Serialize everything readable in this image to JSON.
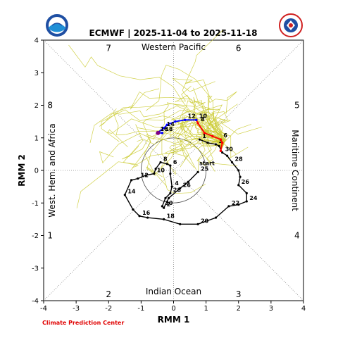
{
  "header": {
    "title": "ECMWF | 2025-11-04 to 2025-11-18",
    "credit": "Climate Prediction Center",
    "logo_left": "noaa-logo",
    "logo_right": "national-weather-service-logo"
  },
  "chart_data": {
    "type": "scatter",
    "title": "ECMWF | 2025-11-04 to 2025-11-18",
    "xlabel": "RMM 1",
    "ylabel": "RMM 2",
    "xlim": [
      -4,
      4
    ],
    "ylim": [
      -4,
      4
    ],
    "xticks": [
      -4,
      -3,
      -2,
      -1,
      0,
      1,
      2,
      3,
      4
    ],
    "yticks": [
      -4,
      -3,
      -2,
      -1,
      0,
      1,
      2,
      3,
      4
    ],
    "grid": false,
    "unit_circle_radius": 1,
    "regions": [
      {
        "name": "Western Pacific",
        "side": "top"
      },
      {
        "name": "Indian Ocean",
        "side": "bottom"
      },
      {
        "name": "West. Hem. and Africa",
        "side": "left"
      },
      {
        "name": "Maritime Continent",
        "side": "right"
      }
    ],
    "phases": [
      {
        "label": "1",
        "x": -3.8,
        "y": -2
      },
      {
        "label": "2",
        "x": -2,
        "y": -3.8
      },
      {
        "label": "3",
        "x": 2,
        "y": -3.8
      },
      {
        "label": "4",
        "x": 3.8,
        "y": -2
      },
      {
        "label": "5",
        "x": 3.8,
        "y": 2
      },
      {
        "label": "6",
        "x": 2,
        "y": 3.75
      },
      {
        "label": "7",
        "x": -2,
        "y": 3.75
      },
      {
        "label": "8",
        "x": -3.8,
        "y": 2
      }
    ],
    "colors": {
      "observed": "#000000",
      "ensemble": "#c9c92a",
      "forecast_early": "#ff0000",
      "forecast_late": "#0000ff",
      "ensemble_mean_marker": "#800080",
      "credit": "#e00000"
    },
    "observed": {
      "start_label": "start",
      "points": [
        {
          "x": 0.8,
          "y": 0.95,
          "label": "1"
        },
        {
          "x": 1.05,
          "y": 0.85,
          "label": ""
        },
        {
          "x": 1.3,
          "y": 0.8,
          "label": "3"
        },
        {
          "x": 1.4,
          "y": 0.75,
          "label": ""
        },
        {
          "x": 1.5,
          "y": 0.55,
          "label": "30"
        },
        {
          "x": 1.65,
          "y": 0.45,
          "label": ""
        },
        {
          "x": 1.8,
          "y": 0.25,
          "label": "28"
        },
        {
          "x": 2.0,
          "y": 0.0,
          "label": ""
        },
        {
          "x": 2.05,
          "y": -0.2,
          "label": ""
        },
        {
          "x": 2.0,
          "y": -0.45,
          "label": "26"
        },
        {
          "x": 2.25,
          "y": -0.7,
          "label": ""
        },
        {
          "x": 2.25,
          "y": -0.95,
          "label": "24"
        },
        {
          "x": 2.0,
          "y": -1.05,
          "label": ""
        },
        {
          "x": 1.7,
          "y": -1.1,
          "label": "22"
        },
        {
          "x": 1.3,
          "y": -1.45,
          "label": ""
        },
        {
          "x": 0.75,
          "y": -1.65,
          "label": "20"
        },
        {
          "x": 0.2,
          "y": -1.65,
          "label": ""
        },
        {
          "x": -0.3,
          "y": -1.5,
          "label": "18"
        },
        {
          "x": -0.8,
          "y": -1.45,
          "label": ""
        },
        {
          "x": -1.05,
          "y": -1.4,
          "label": "16"
        },
        {
          "x": -1.25,
          "y": -1.2,
          "label": ""
        },
        {
          "x": -1.5,
          "y": -0.75,
          "label": "14"
        },
        {
          "x": -1.3,
          "y": -0.3,
          "label": ""
        },
        {
          "x": -1.1,
          "y": -0.25,
          "label": "12"
        },
        {
          "x": -0.85,
          "y": -0.15,
          "label": ""
        },
        {
          "x": -0.6,
          "y": -0.1,
          "label": "10"
        },
        {
          "x": -0.55,
          "y": 0.05,
          "label": ""
        },
        {
          "x": -0.4,
          "y": 0.25,
          "label": "8"
        },
        {
          "x": -0.2,
          "y": 0.2,
          "label": ""
        },
        {
          "x": -0.1,
          "y": 0.15,
          "label": "6"
        },
        {
          "x": -0.1,
          "y": -0.1,
          "label": ""
        },
        {
          "x": -0.05,
          "y": -0.5,
          "label": "4"
        },
        {
          "x": -0.1,
          "y": -0.7,
          "label": "28"
        },
        {
          "x": -0.25,
          "y": -0.85,
          "label": ""
        },
        {
          "x": -0.35,
          "y": -1.1,
          "label": "30"
        },
        {
          "x": -0.3,
          "y": -1.15,
          "label": "2"
        },
        {
          "x": -0.15,
          "y": -0.85,
          "label": ""
        },
        {
          "x": 0.2,
          "y": -0.55,
          "label": "26"
        },
        {
          "x": 0.45,
          "y": -0.35,
          "label": ""
        },
        {
          "x": 0.75,
          "y": -0.05,
          "label": "25"
        }
      ]
    },
    "forecast_red": [
      {
        "x": 1.45,
        "y": 0.6,
        "label": ""
      },
      {
        "x": 1.5,
        "y": 0.85,
        "label": ""
      },
      {
        "x": 1.45,
        "y": 0.95,
        "label": "6"
      },
      {
        "x": 1.2,
        "y": 1.05,
        "label": ""
      },
      {
        "x": 0.95,
        "y": 1.15,
        "label": ""
      },
      {
        "x": 0.75,
        "y": 1.45,
        "label": "8"
      },
      {
        "x": 0.7,
        "y": 1.55,
        "label": "10"
      }
    ],
    "forecast_blue": [
      {
        "x": 0.7,
        "y": 1.55,
        "label": ""
      },
      {
        "x": 0.35,
        "y": 1.55,
        "label": "12"
      },
      {
        "x": 0.05,
        "y": 1.5,
        "label": ""
      },
      {
        "x": -0.2,
        "y": 1.4,
        "label": ""
      },
      {
        "x": -0.3,
        "y": 1.3,
        "label": "14"
      },
      {
        "x": -0.5,
        "y": 1.15,
        "label": ""
      },
      {
        "x": -0.5,
        "y": 1.15,
        "label": "16"
      },
      {
        "x": -0.35,
        "y": 1.15,
        "label": "18"
      }
    ],
    "ensemble_members": 40
  }
}
